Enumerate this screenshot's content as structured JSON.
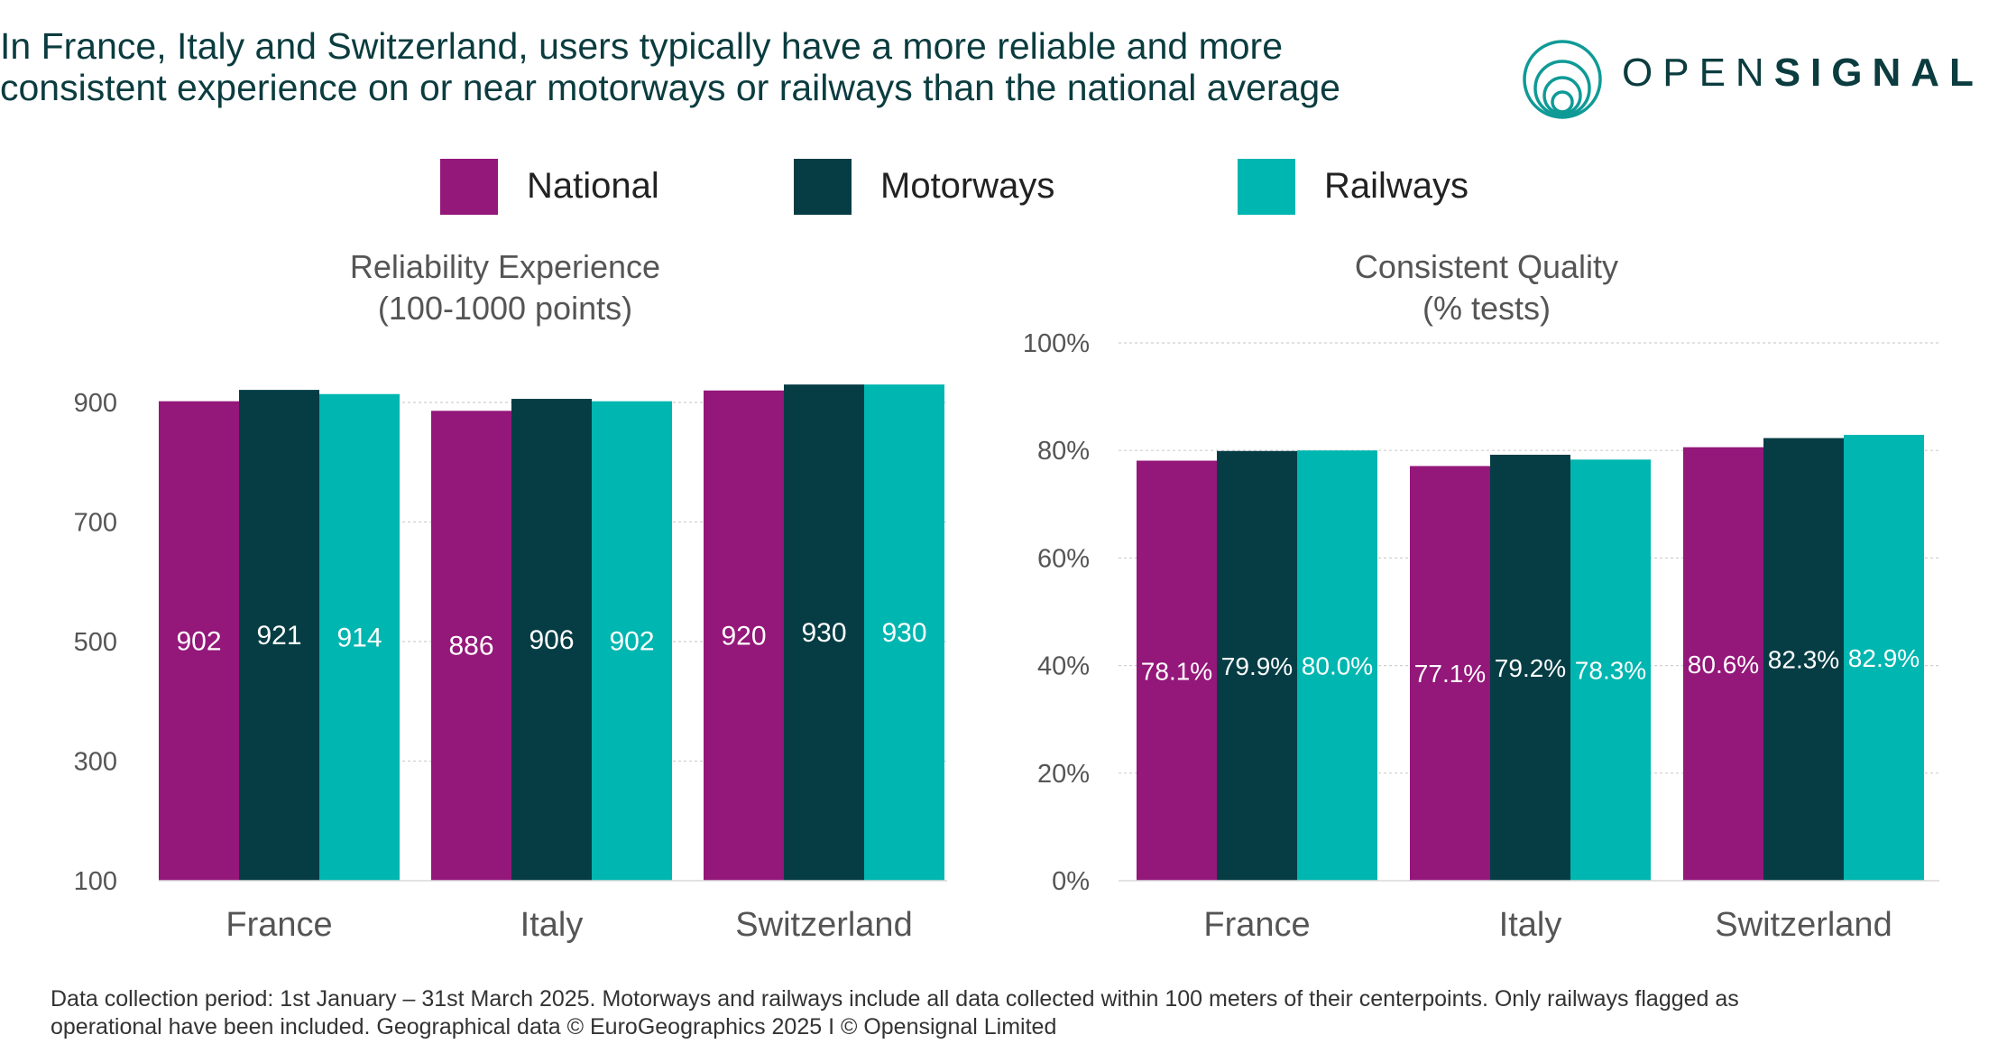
{
  "headline": {
    "line1": "In France, Italy and Switzerland, users typically have a more reliable and more",
    "line2": "consistent experience on or near motorways or railways than the national average"
  },
  "brand": {
    "name_light": "OPEN",
    "name_bold": "SIGNAL",
    "icon": "opensignal-concentric-circles-logo",
    "color": "#0f9a96"
  },
  "colors": {
    "National": "#94177a",
    "Motorways": "#063d45",
    "Railways": "#00b6b0",
    "text_dark": "#0b3c3f"
  },
  "legend": {
    "items": [
      {
        "label": "National"
      },
      {
        "label": "Motorways"
      },
      {
        "label": "Railways"
      }
    ]
  },
  "chart_data": [
    {
      "type": "bar",
      "title": "Reliability Experience",
      "subtitle": "(100-1000 points)",
      "categories": [
        "France",
        "Italy",
        "Switzerland"
      ],
      "series": [
        {
          "name": "National",
          "values": [
            902,
            886,
            920
          ],
          "labels": [
            "902",
            "886",
            "920"
          ]
        },
        {
          "name": "Motorways",
          "values": [
            921,
            906,
            930
          ],
          "labels": [
            "921",
            "906",
            "930"
          ]
        },
        {
          "name": "Railways",
          "values": [
            914,
            902,
            930
          ],
          "labels": [
            "914",
            "902",
            "930"
          ]
        }
      ],
      "yticks": [
        100,
        300,
        500,
        700,
        900
      ],
      "ytick_labels": [
        "100",
        "300",
        "500",
        "700",
        "900"
      ],
      "ylim": [
        100,
        1000
      ],
      "grid": true,
      "legend": "top"
    },
    {
      "type": "bar",
      "title": "Consistent Quality",
      "subtitle": "(% tests)",
      "categories": [
        "France",
        "Italy",
        "Switzerland"
      ],
      "series": [
        {
          "name": "National",
          "values": [
            78.1,
            77.1,
            80.6
          ],
          "labels": [
            "78.1%",
            "77.1%",
            "80.6%"
          ]
        },
        {
          "name": "Motorways",
          "values": [
            79.9,
            79.2,
            82.3
          ],
          "labels": [
            "79.9%",
            "79.2%",
            "82.3%"
          ]
        },
        {
          "name": "Railways",
          "values": [
            80.0,
            78.3,
            82.9
          ],
          "labels": [
            "80.0%",
            "78.3%",
            "82.9%"
          ]
        }
      ],
      "yticks": [
        0,
        20,
        40,
        60,
        80,
        100
      ],
      "ytick_labels": [
        "0%",
        "20%",
        "40%",
        "60%",
        "80%",
        "100%"
      ],
      "ylim": [
        0,
        100
      ],
      "grid": true,
      "legend": "top"
    }
  ],
  "footer": {
    "line1": "Data collection period: 1st  January – 31st March 2025. Motorways and railways include all data collected within 100 meters of their centerpoints. Only railways flagged as",
    "line2": "operational have been included. Geographical data © EuroGeographics 2025 I © Opensignal Limited"
  }
}
